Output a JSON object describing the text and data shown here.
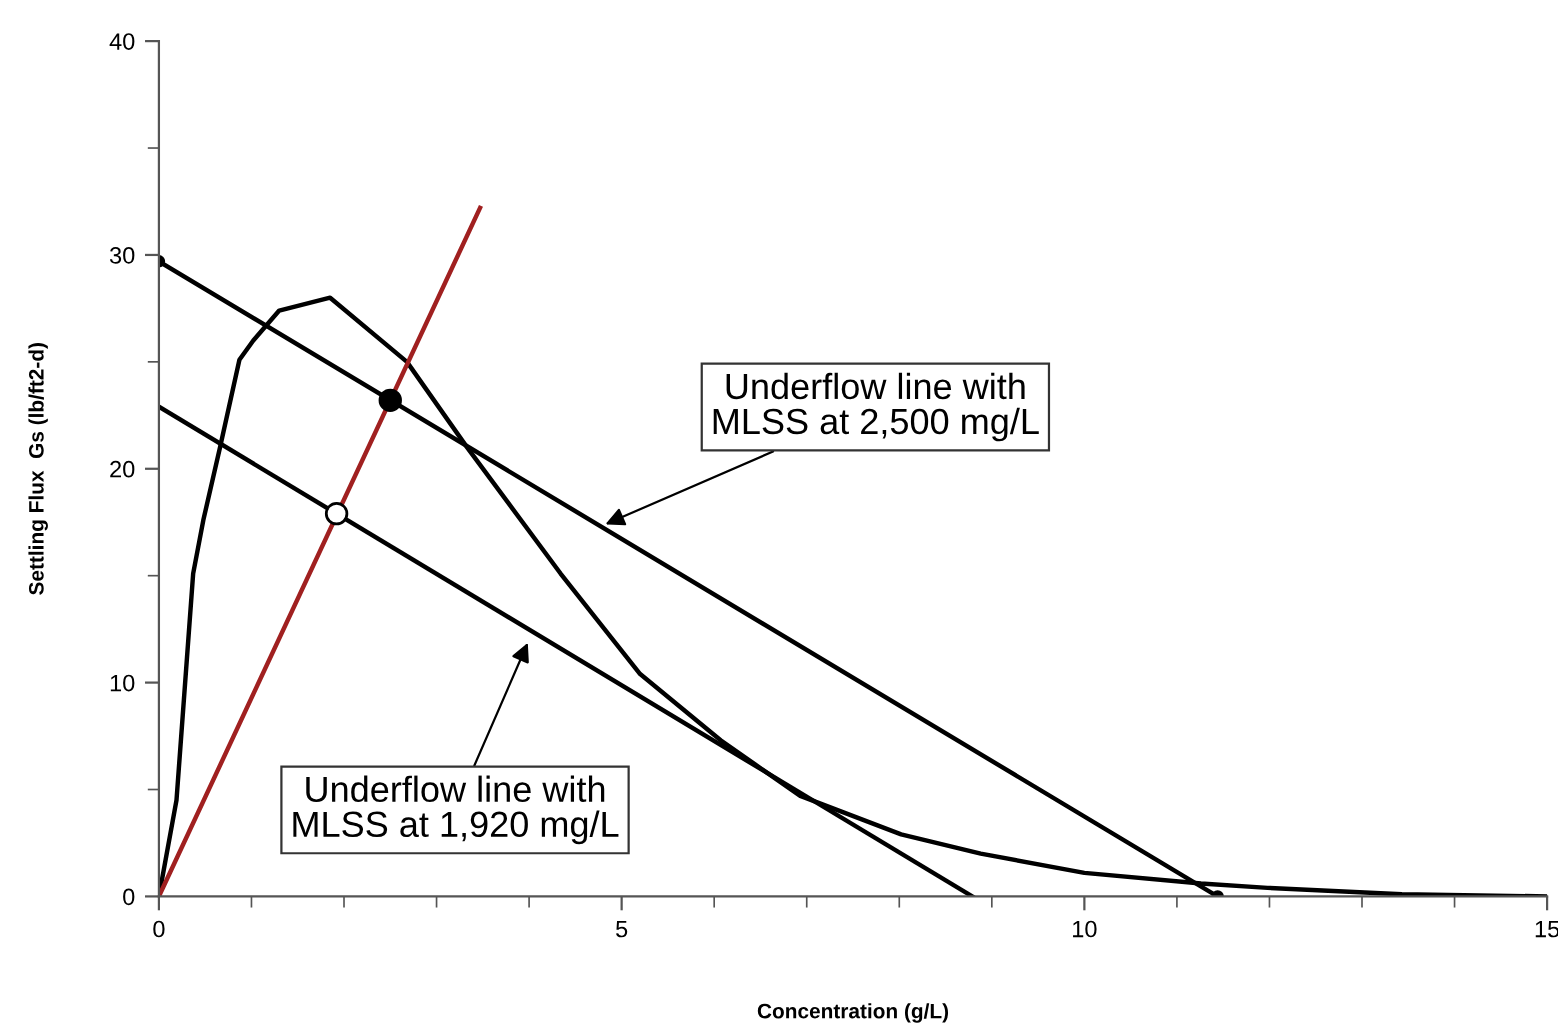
{
  "chart_data": {
    "type": "line",
    "xlabel": "Concentration (g/L)",
    "ylabel": "Settling Flux  Gs (lb/ft2-d)",
    "xlim": [
      0,
      15
    ],
    "xticks": [
      0,
      5,
      10,
      15
    ],
    "ylim": [
      0,
      40
    ],
    "yticks": [
      0,
      10,
      20,
      30,
      40
    ],
    "grid": false,
    "legend": false,
    "series": [
      {
        "color": "#000000",
        "x": [
          0,
          0.19,
          0.37,
          0.48,
          0.66,
          0.87,
          1.02,
          1.3,
          1.85,
          2.68,
          3.33,
          4.34,
          5.2,
          6.07,
          6.93,
          8.02,
          8.88,
          10.0,
          11.26,
          11.98,
          13.43,
          15
        ],
        "values": [
          0,
          4.5,
          15.1,
          17.6,
          21.0,
          25.1,
          26.0,
          27.4,
          28.0,
          25.0,
          21.0,
          15.1,
          10.4,
          7.3,
          4.7,
          2.9,
          2.0,
          1.1,
          0.6,
          0.4,
          0.1,
          0
        ]
      },
      {
        "color": "#000000",
        "marker": "circle",
        "x": [
          0,
          11.44
        ],
        "values": [
          29.7,
          0
        ]
      },
      {
        "color": "#000000",
        "x": [
          0,
          8.79
        ],
        "values": [
          22.9,
          0
        ]
      },
      {
        "color": "#a02020",
        "x": [
          0,
          3.47
        ],
        "values": [
          0,
          32.2
        ]
      },
      {
        "type": "scatter",
        "color": "#000000",
        "x": [
          2.5
        ],
        "values": [
          23.2
        ]
      },
      {
        "type": "scatter",
        "color": "#ffffff",
        "x": [
          1.92
        ],
        "values": [
          17.9
        ]
      }
    ],
    "annotations": [
      {
        "text": "Underflow line with\nMLSS at 2,500 mg/L",
        "x": 4.77,
        "y": 17.3
      },
      {
        "text": "Underflow line with\nMLSS at 1,920 mg/L",
        "x": 4.01,
        "y": 12.1
      }
    ]
  }
}
